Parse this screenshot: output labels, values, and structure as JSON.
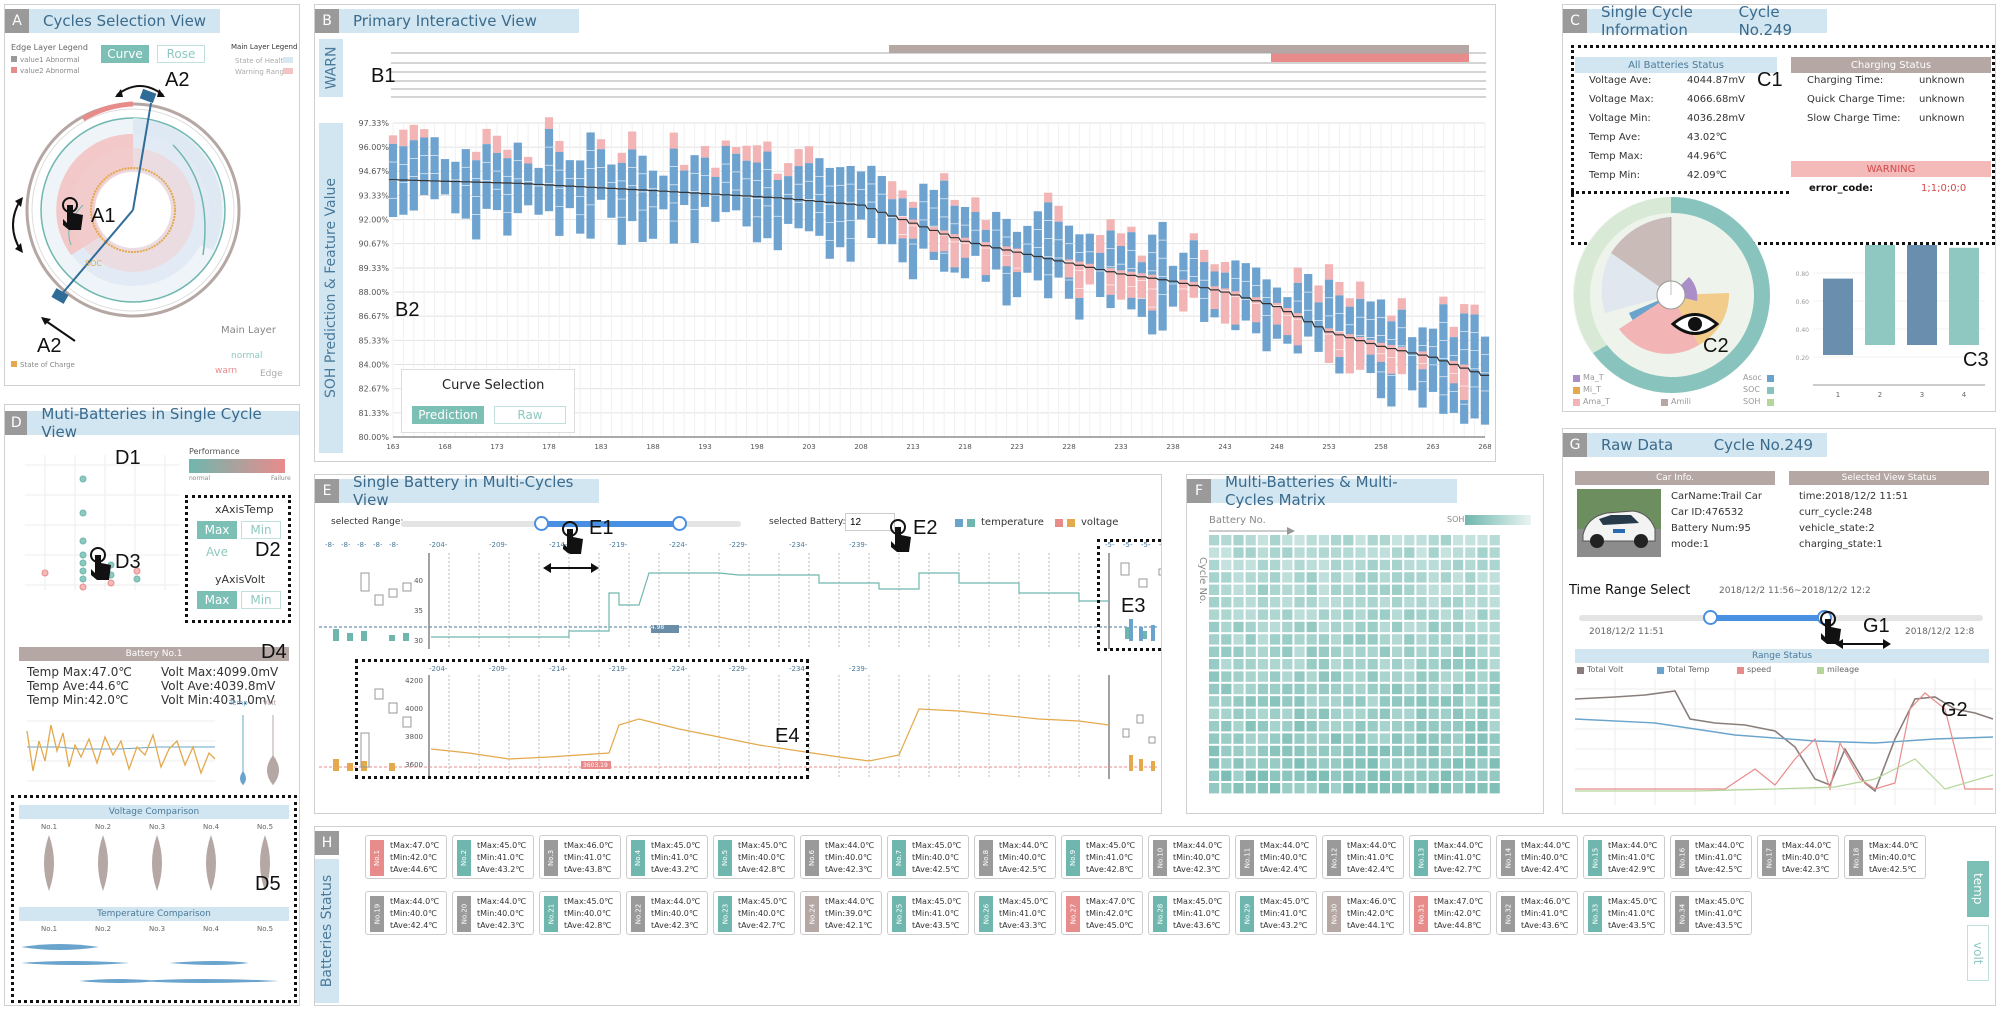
{
  "panels": {
    "A": {
      "letter": "A",
      "title": "Cycles Selection View"
    },
    "B": {
      "letter": "B",
      "title": "Primary Interactive View"
    },
    "C": {
      "letter": "C",
      "title": "Single Cycle Information",
      "cycle": "Cycle No.249"
    },
    "D": {
      "letter": "D",
      "title": "Muti-Batteries in Single Cycle View"
    },
    "E": {
      "letter": "E",
      "title": "Single Battery in Multi-Cycles View"
    },
    "F": {
      "letter": "F",
      "title": "Multi-Batteries & Multi-Cycles Matrix"
    },
    "G": {
      "letter": "G",
      "title": "Raw Data",
      "cycle": "Cycle No.249"
    },
    "H": {
      "letter": "H",
      "side": "Batteries Status"
    }
  },
  "panelA": {
    "edge_legend_title": "Edge Layer Legend",
    "edge_legend": [
      "value1 Abnormal",
      "value2 Abnormal"
    ],
    "curve_btn": "Curve",
    "rose_btn": "Rose",
    "main_legend_title": "Main Layer Legend",
    "main_legend": [
      "State of Health",
      "Warning Range"
    ],
    "soc_label": "SOC",
    "soc_legend": "State of Charge",
    "main_layer": "Main Layer",
    "normal": "normal",
    "warn": "warn",
    "edge": "Edge",
    "colors": {
      "grey": "#b5a7a4",
      "red": "#e88b8b",
      "teal": "#6fb7ae",
      "orange": "#e3a94c",
      "blue": "#2f6d98"
    }
  },
  "panelB": {
    "warn_label": "WARN",
    "y_label": "SOH Prediction & Feature Value",
    "curve_selection": "Curve Selection",
    "prediction_btn": "Prediction",
    "raw_btn": "Raw"
  },
  "chart_data": {
    "type": "bar",
    "ylabel": "SOH Prediction & Feature Value",
    "y_ticks": [
      "97.33%",
      "96.00%",
      "94.67%",
      "93.33%",
      "92.00%",
      "90.67%",
      "89.33%",
      "88.00%",
      "86.67%",
      "85.33%",
      "84.00%",
      "82.67%",
      "81.33%",
      "80.00%"
    ],
    "x_ticks": [
      "163",
      "168",
      "173",
      "178",
      "183",
      "188",
      "193",
      "198",
      "203",
      "208",
      "213",
      "218",
      "223",
      "228",
      "233",
      "238",
      "243",
      "248",
      "253",
      "258",
      "263",
      "268"
    ],
    "ylim": [
      80.0,
      97.33
    ],
    "xlim": [
      163,
      268
    ],
    "soh_line": [
      [
        163,
        94.2
      ],
      [
        175,
        94.0
      ],
      [
        188,
        93.6
      ],
      [
        200,
        93.2
      ],
      [
        208,
        92.8
      ],
      [
        213,
        91.8
      ],
      [
        218,
        90.8
      ],
      [
        223,
        90.2
      ],
      [
        228,
        89.6
      ],
      [
        233,
        89.0
      ],
      [
        238,
        88.6
      ],
      [
        243,
        88.0
      ],
      [
        248,
        87.2
      ],
      [
        253,
        85.8
      ],
      [
        258,
        85.0
      ],
      [
        263,
        84.4
      ],
      [
        268,
        83.4
      ]
    ]
  },
  "panelC": {
    "all_status_title": "All Batteries Status",
    "rows": [
      {
        "k": "Voltage Ave:",
        "v": "4044.87mV"
      },
      {
        "k": "Voltage Max:",
        "v": "4066.68mV"
      },
      {
        "k": "Voltage Min:",
        "v": "4036.28mV"
      },
      {
        "k": "Temp Ave:",
        "v": "43.02℃"
      },
      {
        "k": "Temp Max:",
        "v": "44.96℃"
      },
      {
        "k": "Temp Min:",
        "v": "42.09℃"
      }
    ],
    "charging_title": "Charging Status",
    "charging": [
      {
        "k": "Charging Time:",
        "v": "unknown"
      },
      {
        "k": "Quick Charge Time:",
        "v": "unknown"
      },
      {
        "k": "Slow Charge Time:",
        "v": "unknown"
      }
    ],
    "warning_title": "WARNING",
    "error_key": "error_code:",
    "error_val": "1;1;0;0;0",
    "rose_legend": [
      "Ma_T",
      "Mi_T",
      "Ama_T",
      "Amili",
      "Asoc",
      "SOC",
      "SOH"
    ],
    "bar_values": [
      0.76,
      1.0,
      1.0,
      0.98
    ],
    "bar_ticks": [
      "1",
      "2",
      "3",
      "4"
    ],
    "bar_y": [
      "0.80",
      "0.60",
      "0.40",
      "0.20"
    ]
  },
  "panelD": {
    "performance": "Performance",
    "perf_left": "normal",
    "perf_right": "Failure",
    "xaxis_title": "xAxisTemp",
    "yaxis_title": "yAxisVolt",
    "max": "Max",
    "min": "Min",
    "ave": "Ave",
    "battery_title": "Battery No.1",
    "stats_left": [
      "Temp Max:47.0℃",
      "Temp Ave:44.6℃",
      "Temp Min:42.0℃"
    ],
    "stats_right": [
      "Volt Max:4099.0mV",
      "Volt Ave:4039.8mV",
      "Volt Min:4031.0mV"
    ],
    "temp_lbl": "Temp",
    "volt_lbl": "Volt",
    "voltage_comparison": "Voltage Comparison",
    "temperature_comparison": "Temperature Comparison",
    "cmp_labels": [
      "No.1",
      "No.2",
      "No.3",
      "No.4",
      "No.5"
    ]
  },
  "panelE": {
    "selected_range": "selected Range:",
    "selected_battery": "selected Battery:",
    "battery_value": "12",
    "temperature": "temperature",
    "voltage": "voltage",
    "top_axis": [
      "-204-",
      "-209-",
      "-214-",
      "-219-",
      "-224-",
      "-229-",
      "-234-",
      "-239-"
    ],
    "left_axis": [
      "-8-",
      "-8-",
      "-8-",
      "-8-",
      "-8-"
    ],
    "right_axis": [
      "-5-",
      "-5-",
      "-5-",
      "-5-",
      "-5-"
    ],
    "t_y": [
      "40",
      "35",
      "30"
    ],
    "v_y": [
      "4200",
      "4000",
      "3800",
      "3600"
    ],
    "temp_flag": "24.98",
    "volt_flag": "3603.19"
  },
  "panelF": {
    "battery_axis": "Battery No.",
    "cycle_axis": "Cycle No.",
    "soh": "SOH"
  },
  "panelG": {
    "car_info": "Car Info.",
    "car": [
      "CarName:Trail Car",
      "Car ID:476532",
      "Battery Num:95",
      "mode:1"
    ],
    "view_status": "Selected View Status",
    "status": [
      "time:2018/12/2 11:51",
      "curr_cycle:248",
      "vehicle_state:2",
      "charging_state:1"
    ],
    "time_range": "Time Range Select",
    "range_text": "2018/12/2 11:56~2018/12/2 12:2",
    "range_left": "2018/12/2 11:51",
    "range_right": "2018/12/2 12:8",
    "range_status": "Range Status",
    "legend": [
      "Total Volt",
      "Total Temp",
      "speed",
      "mileage"
    ]
  },
  "panelH": {
    "temp_btn": "temp",
    "volt_btn": "volt",
    "cards": [
      {
        "no": "No.1",
        "c": "#e88b8b",
        "a": "tMax:47.0℃",
        "b": "tMin:42.0℃",
        "d": "tAve:44.6℃"
      },
      {
        "no": "No.2",
        "c": "#6fb7ae",
        "a": "tMax:45.0℃",
        "b": "tMin:41.0℃",
        "d": "tAve:43.2℃"
      },
      {
        "no": "No.3",
        "c": "#9a9a9a",
        "a": "tMax:46.0℃",
        "b": "tMin:41.0℃",
        "d": "tAve:43.8℃"
      },
      {
        "no": "No.4",
        "c": "#6fb7ae",
        "a": "tMax:45.0℃",
        "b": "tMin:41.0℃",
        "d": "tAve:43.2℃"
      },
      {
        "no": "No.5",
        "c": "#6fb7ae",
        "a": "tMax:45.0℃",
        "b": "tMin:40.0℃",
        "d": "tAve:42.8℃"
      },
      {
        "no": "No.6",
        "c": "#9a9a9a",
        "a": "tMax:44.0℃",
        "b": "tMin:40.0℃",
        "d": "tAve:42.3℃"
      },
      {
        "no": "No.7",
        "c": "#6fb7ae",
        "a": "tMax:45.0℃",
        "b": "tMin:40.0℃",
        "d": "tAve:42.5℃"
      },
      {
        "no": "No.8",
        "c": "#9a9a9a",
        "a": "tMax:44.0℃",
        "b": "tMin:40.0℃",
        "d": "tAve:42.5℃"
      },
      {
        "no": "No.9",
        "c": "#6fb7ae",
        "a": "tMax:45.0℃",
        "b": "tMin:41.0℃",
        "d": "tAve:42.8℃"
      },
      {
        "no": "No.10",
        "c": "#9a9a9a",
        "a": "tMax:44.0℃",
        "b": "tMin:40.0℃",
        "d": "tAve:42.3℃"
      },
      {
        "no": "No.11",
        "c": "#9a9a9a",
        "a": "tMax:44.0℃",
        "b": "tMin:40.0℃",
        "d": "tAve:42.4℃"
      },
      {
        "no": "No.12",
        "c": "#9a9a9a",
        "a": "tMax:44.0℃",
        "b": "tMin:41.0℃",
        "d": "tAve:42.4℃"
      },
      {
        "no": "No.13",
        "c": "#6fb7ae",
        "a": "tMax:44.0℃",
        "b": "tMin:41.0℃",
        "d": "tAve:42.7℃"
      },
      {
        "no": "No.14",
        "c": "#9a9a9a",
        "a": "tMax:44.0℃",
        "b": "tMin:40.0℃",
        "d": "tAve:42.4℃"
      },
      {
        "no": "No.15",
        "c": "#6fb7ae",
        "a": "tMax:44.0℃",
        "b": "tMin:41.0℃",
        "d": "tAve:42.9℃"
      },
      {
        "no": "No.16",
        "c": "#9a9a9a",
        "a": "tMax:44.0℃",
        "b": "tMin:41.0℃",
        "d": "tAve:42.5℃"
      },
      {
        "no": "No.17",
        "c": "#9a9a9a",
        "a": "tMax:44.0℃",
        "b": "tMin:40.0℃",
        "d": "tAve:42.3℃"
      },
      {
        "no": "No.18",
        "c": "#9a9a9a",
        "a": "tMax:44.0℃",
        "b": "tMin:40.0℃",
        "d": "tAve:42.5℃"
      },
      {
        "no": "No.19",
        "c": "#9a9a9a",
        "a": "tMax:44.0℃",
        "b": "tMin:40.0℃",
        "d": "tAve:42.4℃"
      },
      {
        "no": "No.20",
        "c": "#9a9a9a",
        "a": "tMax:44.0℃",
        "b": "tMin:40.0℃",
        "d": "tAve:42.3℃"
      },
      {
        "no": "No.21",
        "c": "#6fb7ae",
        "a": "tMax:45.0℃",
        "b": "tMin:40.0℃",
        "d": "tAve:42.8℃"
      },
      {
        "no": "No.22",
        "c": "#9a9a9a",
        "a": "tMax:44.0℃",
        "b": "tMin:40.0℃",
        "d": "tAve:42.3℃"
      },
      {
        "no": "No.23",
        "c": "#6fb7ae",
        "a": "tMax:45.0℃",
        "b": "tMin:40.0℃",
        "d": "tAve:42.7℃"
      },
      {
        "no": "No.24",
        "c": "#b5a7a4",
        "a": "tMax:44.0℃",
        "b": "tMin:39.0℃",
        "d": "tAve:42.1℃"
      },
      {
        "no": "No.25",
        "c": "#6fb7ae",
        "a": "tMax:45.0℃",
        "b": "tMin:41.0℃",
        "d": "tAve:43.5℃"
      },
      {
        "no": "No.26",
        "c": "#6fb7ae",
        "a": "tMax:45.0℃",
        "b": "tMin:41.0℃",
        "d": "tAve:43.3℃"
      },
      {
        "no": "No.27",
        "c": "#e88b8b",
        "a": "tMax:47.0℃",
        "b": "tMin:42.0℃",
        "d": "tAve:45.0℃"
      },
      {
        "no": "No.28",
        "c": "#6fb7ae",
        "a": "tMax:45.0℃",
        "b": "tMin:41.0℃",
        "d": "tAve:43.6℃"
      },
      {
        "no": "No.29",
        "c": "#6fb7ae",
        "a": "tMax:45.0℃",
        "b": "tMin:41.0℃",
        "d": "tAve:43.2℃"
      },
      {
        "no": "No.30",
        "c": "#b5a7a4",
        "a": "tMax:46.0℃",
        "b": "tMin:42.0℃",
        "d": "tAve:44.1℃"
      },
      {
        "no": "No.31",
        "c": "#e88b8b",
        "a": "tMax:47.0℃",
        "b": "tMin:42.0℃",
        "d": "tAve:44.8℃"
      },
      {
        "no": "No.32",
        "c": "#9a9a9a",
        "a": "tMax:46.0℃",
        "b": "tMin:41.0℃",
        "d": "tAve:43.6℃"
      },
      {
        "no": "No.33",
        "c": "#6fb7ae",
        "a": "tMax:45.0℃",
        "b": "tMin:41.0℃",
        "d": "tAve:43.5℃"
      },
      {
        "no": "No.34",
        "c": "#9a9a9a",
        "a": "tMax:45.0℃",
        "b": "tMin:41.0℃",
        "d": "tAve:43.5℃"
      }
    ]
  },
  "annotations": {
    "A1": "A1",
    "A2a": "A2",
    "A2b": "A2",
    "B1": "B1",
    "B2": "B2",
    "C1": "C1",
    "C2": "C2",
    "C3": "C3",
    "D1": "D1",
    "D2": "D2",
    "D3": "D3",
    "D4": "D4",
    "D5": "D5",
    "E1": "E1",
    "E2": "E2",
    "E3": "E3",
    "E4": "E4",
    "G1": "G1",
    "G2": "G2"
  }
}
